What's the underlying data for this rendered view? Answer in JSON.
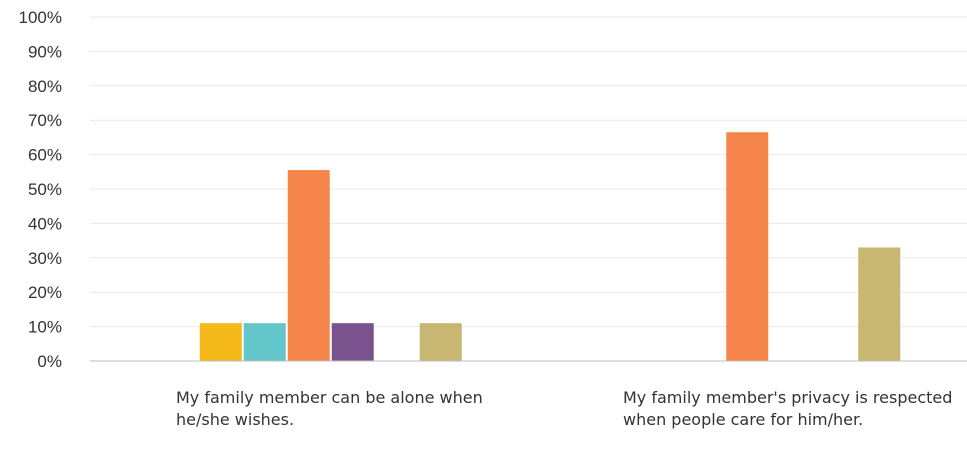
{
  "chart_data": {
    "type": "bar",
    "categories": [
      "My family member can be alone when he/she wishes.",
      "My family member's privacy is respected when people care for him/her."
    ],
    "series": [
      {
        "color": "#2b7ad0",
        "values": [
          0,
          0
        ]
      },
      {
        "color": "#f6b91a",
        "values": [
          11,
          0
        ]
      },
      {
        "color": "#63c6cb",
        "values": [
          11,
          0
        ]
      },
      {
        "color": "#f5854a",
        "values": [
          55.5,
          66.5
        ]
      },
      {
        "color": "#7a528e",
        "values": [
          11,
          0
        ]
      },
      {
        "color": "#9dbf47",
        "values": [
          0,
          0
        ]
      },
      {
        "color": "#c8b772",
        "values": [
          11,
          33
        ]
      }
    ],
    "ylim": [
      0,
      100
    ],
    "yticks": [
      "0%",
      "10%",
      "20%",
      "30%",
      "40%",
      "50%",
      "60%",
      "70%",
      "80%",
      "90%",
      "100%"
    ],
    "grid": true,
    "title": "",
    "xlabel": "",
    "ylabel": ""
  }
}
